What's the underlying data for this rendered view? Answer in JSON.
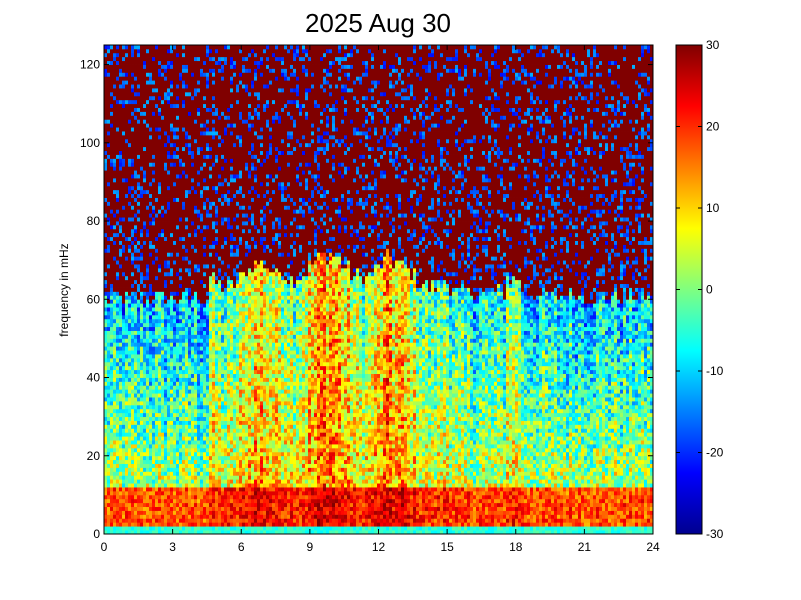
{
  "chart_data": {
    "type": "heatmap",
    "title": "2025 Aug 30",
    "ylabel": "frequency in mHz",
    "xlabel": "",
    "xlim": [
      0,
      24
    ],
    "ylim": [
      0,
      125
    ],
    "x_ticks": [
      0,
      3,
      6,
      9,
      12,
      15,
      18,
      21,
      24
    ],
    "y_ticks": [
      0,
      20,
      40,
      60,
      80,
      100,
      120
    ],
    "x_tick_labels": [
      "0",
      "3",
      "6",
      "9",
      "12",
      "15",
      "18",
      "21",
      "24"
    ],
    "y_tick_labels": [
      "0",
      "20",
      "40",
      "60",
      "80",
      "100",
      "120"
    ],
    "colorbar": {
      "range": [
        -30,
        30
      ],
      "ticks": [
        -30,
        -20,
        -10,
        0,
        10,
        20,
        30
      ],
      "tick_labels": [
        "-30",
        "-20",
        "-10",
        "0",
        "10",
        "20",
        "30"
      ],
      "colormap": "jet"
    },
    "grid": false
  }
}
